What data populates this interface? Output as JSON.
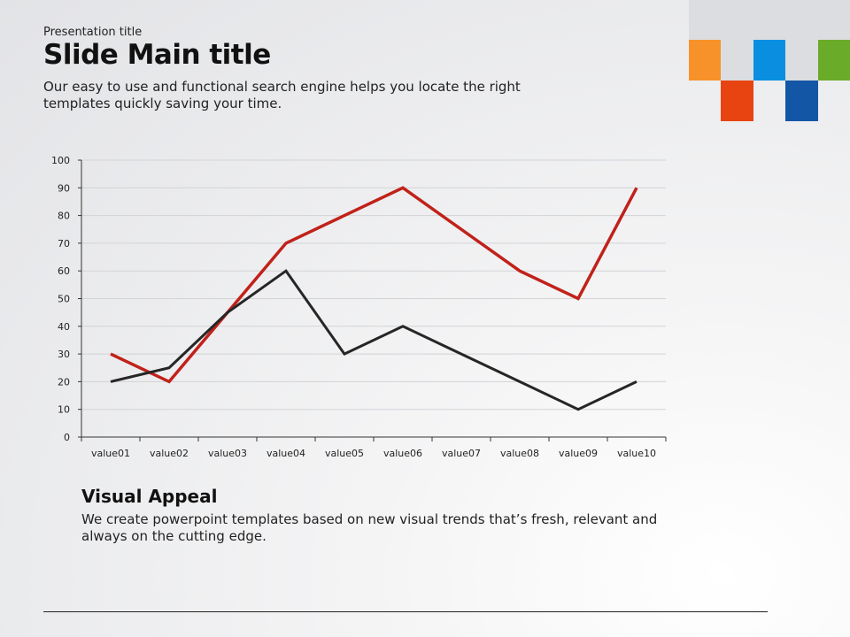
{
  "header": {
    "presentation_title": "Presentation title",
    "main_title": "Slide Main title",
    "subtitle": "Our easy to use and functional search engine helps you locate the right templates quickly saving your time."
  },
  "decor_colors": {
    "orange": "#f7922a",
    "blue": "#0a8fe0",
    "green": "#6aab2a",
    "red": "#e84412",
    "dark_blue": "#1456a6",
    "gray": "#dcdde0"
  },
  "chart_data": {
    "type": "line",
    "categories": [
      "value01",
      "value02",
      "value03",
      "value04",
      "value05",
      "value06",
      "value07",
      "value08",
      "value09",
      "value10"
    ],
    "series": [
      {
        "color": "#c0221a",
        "values": [
          30,
          20,
          45,
          70,
          80,
          90,
          75,
          60,
          50,
          90
        ]
      },
      {
        "color": "#262626",
        "values": [
          20,
          25,
          45,
          60,
          30,
          40,
          30,
          20,
          10,
          20
        ]
      }
    ],
    "ylim": [
      0,
      100
    ],
    "yticks": [
      "0",
      "10",
      "20",
      "30",
      "40",
      "50",
      "60",
      "70",
      "80",
      "90",
      "100"
    ],
    "grid": true
  },
  "section": {
    "heading": "Visual Appeal",
    "text": "We create powerpoint templates based on new visual trends that’s fresh, relevant and always on the cutting edge."
  }
}
